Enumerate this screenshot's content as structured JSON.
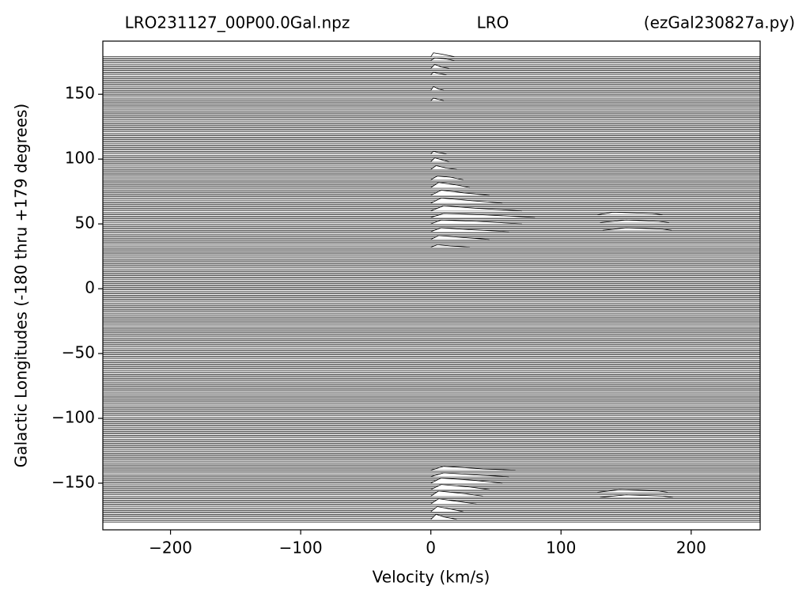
{
  "chart_data": {
    "type": "waterfall",
    "title_left": "LRO231127_00P00.0Gal.npz",
    "title_center": "LRO",
    "title_right": "(ezGal230827a.py)",
    "x_label": "Velocity (km/s)",
    "y_label": "Galactic Longitudes   (-180 thru +179 degrees)",
    "xlim": [
      -252,
      253
    ],
    "ylim": [
      -186,
      191
    ],
    "xticks": [
      {
        "value": -200,
        "label": "−200"
      },
      {
        "value": -100,
        "label": "−100"
      },
      0,
      100,
      200
    ],
    "yticks": [
      {
        "value": -150,
        "label": "−150"
      },
      {
        "value": -100,
        "label": "−100"
      },
      {
        "value": -50,
        "label": "−50"
      },
      0,
      50,
      100,
      150
    ],
    "color": "#000000",
    "longitudes": [
      -180,
      -179,
      -178,
      -177,
      -176,
      -175,
      -174,
      -173,
      -172,
      -171,
      -170,
      -169,
      -168,
      -167,
      -166,
      -165,
      -164,
      -163,
      -162,
      -161,
      -160,
      -159,
      -158,
      -157,
      -156,
      -155,
      -154,
      -153,
      -152,
      -151,
      -150,
      -149,
      -148,
      -147,
      -146,
      -145,
      -144,
      -143,
      -142,
      -141,
      -140,
      -139,
      -138,
      -137,
      -136,
      -135,
      -134,
      -133,
      -132,
      -131,
      -130,
      -129,
      -128,
      -127,
      -126,
      -125,
      -124,
      -123,
      -122,
      -121,
      -120,
      -119,
      -118,
      -117,
      -116,
      -115,
      -114,
      -113,
      -112,
      -111,
      -110,
      -109,
      -108,
      -107,
      -106,
      -105,
      -104,
      -103,
      -102,
      -101,
      -100,
      -99,
      -98,
      -97,
      -96,
      -95,
      -94,
      -93,
      -92,
      -91,
      -90,
      -89,
      -88,
      -87,
      -86,
      -85,
      -84,
      -83,
      -82,
      -81,
      -80,
      -79,
      -78,
      -77,
      -76,
      -75,
      -74,
      -73,
      -72,
      -71,
      -70,
      -69,
      -68,
      -67,
      -66,
      -65,
      -64,
      -63,
      -62,
      -61,
      -60,
      -59,
      -58,
      -57,
      -56,
      -55,
      -54,
      -53,
      -52,
      -51,
      -50,
      -49,
      -48,
      -47,
      -46,
      -45,
      -44,
      -43,
      -42,
      -41,
      -40,
      -39,
      -38,
      -37,
      -36,
      -35,
      -34,
      -33,
      -32,
      -31,
      -30,
      -29,
      -28,
      -27,
      -26,
      -25,
      -24,
      -23,
      -22,
      -21,
      -20,
      -19,
      -18,
      -17,
      -16,
      -15,
      -14,
      -13,
      -12,
      -11,
      -10,
      -9,
      -8,
      -7,
      -6,
      -5,
      -4,
      -3,
      -2,
      -1,
      0,
      1,
      2,
      3,
      4,
      5,
      6,
      7,
      8,
      9,
      10,
      11,
      12,
      13,
      14,
      15,
      16,
      17,
      18,
      19,
      20,
      21,
      22,
      23,
      24,
      25,
      26,
      27,
      28,
      29,
      30,
      31,
      32,
      33,
      34,
      35,
      36,
      37,
      38,
      39,
      40,
      41,
      42,
      43,
      44,
      45,
      46,
      47,
      48,
      49,
      50,
      51,
      52,
      53,
      54,
      55,
      56,
      57,
      58,
      59,
      60,
      61,
      62,
      63,
      64,
      65,
      66,
      67,
      68,
      69,
      70,
      71,
      72,
      73,
      74,
      75,
      76,
      77,
      78,
      79,
      80,
      81,
      82,
      83,
      84,
      85,
      86,
      87,
      88,
      89,
      90,
      91,
      92,
      93,
      94,
      95,
      96,
      97,
      98,
      99,
      100,
      101,
      102,
      103,
      104,
      105,
      106,
      107,
      108,
      109,
      110,
      111,
      112,
      113,
      114,
      115,
      116,
      117,
      118,
      119,
      120,
      121,
      122,
      123,
      124,
      125,
      126,
      127,
      128,
      129,
      130,
      131,
      132,
      133,
      134,
      135,
      136,
      137,
      138,
      139,
      140,
      141,
      142,
      143,
      144,
      145,
      146,
      147,
      148,
      149,
      150,
      151,
      152,
      153,
      154,
      155,
      156,
      157,
      158,
      159,
      160,
      161,
      162,
      163,
      164,
      165,
      166,
      167,
      168,
      169,
      170,
      171,
      172,
      173,
      174,
      175,
      176,
      177,
      178,
      179
    ],
    "profiles": [
      {
        "longitude": 179,
        "x": [
          0,
          2,
          8,
          18
        ],
        "values": [
          0,
          3,
          2,
          0
        ]
      },
      {
        "longitude": 176,
        "x": [
          0,
          3,
          10,
          18
        ],
        "values": [
          0,
          2,
          1.5,
          0
        ]
      },
      {
        "longitude": 170,
        "x": [
          0,
          3,
          8,
          14
        ],
        "values": [
          0,
          3,
          1,
          0
        ]
      },
      {
        "longitude": 165,
        "x": [
          0,
          2,
          6,
          12
        ],
        "values": [
          0,
          2,
          1,
          0
        ]
      },
      {
        "longitude": 153,
        "x": [
          0,
          2,
          6,
          10
        ],
        "values": [
          0,
          3,
          1,
          0
        ]
      },
      {
        "longitude": 145,
        "x": [
          0,
          2,
          6,
          10
        ],
        "values": [
          0,
          2,
          1,
          0
        ]
      },
      {
        "longitude": 104,
        "x": [
          0,
          2,
          6,
          12
        ],
        "values": [
          0,
          2,
          1,
          0
        ]
      },
      {
        "longitude": 98,
        "x": [
          0,
          3,
          10,
          14
        ],
        "values": [
          0,
          3,
          1,
          0
        ]
      },
      {
        "longitude": 92,
        "x": [
          0,
          4,
          12,
          20
        ],
        "values": [
          0,
          3,
          1,
          0
        ]
      },
      {
        "longitude": 84,
        "x": [
          0,
          5,
          15,
          25
        ],
        "values": [
          0,
          3,
          2,
          0
        ]
      },
      {
        "longitude": 78,
        "x": [
          0,
          6,
          20,
          30
        ],
        "values": [
          0,
          4,
          2,
          0
        ]
      },
      {
        "longitude": 72,
        "x": [
          0,
          8,
          25,
          45
        ],
        "values": [
          0,
          4,
          2,
          0
        ]
      },
      {
        "longitude": 66,
        "x": [
          0,
          8,
          30,
          55
        ],
        "values": [
          0,
          4,
          2,
          0
        ]
      },
      {
        "longitude": 60,
        "x": [
          0,
          10,
          35,
          70
        ],
        "values": [
          0,
          4,
          2,
          0
        ]
      },
      {
        "longitude": 55,
        "x": [
          0,
          10,
          40,
          80
        ],
        "values": [
          0,
          3,
          2,
          0
        ]
      },
      {
        "longitude": 50,
        "x": [
          0,
          8,
          35,
          70
        ],
        "values": [
          0,
          3,
          2,
          0
        ]
      },
      {
        "longitude": 44,
        "x": [
          0,
          8,
          30,
          60
        ],
        "values": [
          0,
          3,
          1.5,
          0
        ]
      },
      {
        "longitude": 38,
        "x": [
          0,
          6,
          25,
          45
        ],
        "values": [
          0,
          3,
          1.5,
          0
        ]
      },
      {
        "longitude": 32,
        "x": [
          0,
          5,
          15,
          30
        ],
        "values": [
          0,
          2,
          1,
          0
        ]
      },
      {
        "longitude": 57,
        "x": [
          128,
          140,
          170,
          178
        ],
        "values": [
          0,
          2,
          1,
          0
        ]
      },
      {
        "longitude": 51,
        "x": [
          130,
          150,
          175,
          183
        ],
        "values": [
          0,
          2,
          1,
          0
        ]
      },
      {
        "longitude": 45,
        "x": [
          132,
          150,
          178,
          185
        ],
        "values": [
          0,
          2,
          1,
          0
        ]
      },
      {
        "longitude": -140,
        "x": [
          0,
          10,
          40,
          65
        ],
        "values": [
          0,
          3,
          1,
          0
        ]
      },
      {
        "longitude": -145,
        "x": [
          0,
          10,
          40,
          60
        ],
        "values": [
          0,
          3,
          1,
          0
        ]
      },
      {
        "longitude": -150,
        "x": [
          0,
          8,
          35,
          55
        ],
        "values": [
          0,
          4,
          2,
          0
        ]
      },
      {
        "longitude": -155,
        "x": [
          0,
          8,
          30,
          45
        ],
        "values": [
          0,
          4,
          2,
          0
        ]
      },
      {
        "longitude": -160,
        "x": [
          0,
          6,
          25,
          40
        ],
        "values": [
          0,
          4,
          2,
          0
        ]
      },
      {
        "longitude": -166,
        "x": [
          0,
          6,
          20,
          35
        ],
        "values": [
          0,
          4,
          2,
          0
        ]
      },
      {
        "longitude": -172,
        "x": [
          0,
          5,
          15,
          25
        ],
        "values": [
          0,
          4,
          2,
          0
        ]
      },
      {
        "longitude": -178,
        "x": [
          0,
          4,
          10,
          20
        ],
        "values": [
          0,
          4,
          2,
          0
        ]
      },
      {
        "longitude": -157,
        "x": [
          128,
          145,
          175,
          182
        ],
        "values": [
          0,
          2,
          1,
          0
        ]
      },
      {
        "longitude": -161,
        "x": [
          130,
          150,
          178,
          186
        ],
        "values": [
          0,
          2,
          1,
          0
        ]
      }
    ]
  }
}
